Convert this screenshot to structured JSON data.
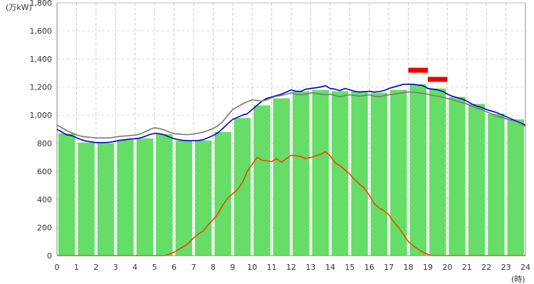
{
  "chart_data": {
    "type": "bar",
    "title": "",
    "xlabel": "(時)",
    "ylabel": "(万kW)",
    "xlim": [
      0,
      24
    ],
    "ylim": [
      0,
      1800
    ],
    "grid": true,
    "x_ticks": [
      "0",
      "1",
      "2",
      "3",
      "4",
      "5",
      "6",
      "7",
      "8",
      "9",
      "10",
      "11",
      "12",
      "13",
      "14",
      "15",
      "16",
      "17",
      "18",
      "19",
      "20",
      "21",
      "22",
      "23",
      "24"
    ],
    "y_ticks": [
      "0",
      "200",
      "400",
      "600",
      "800",
      "1,000",
      "1,200",
      "1,400",
      "1,600",
      "1,800"
    ],
    "categories": [
      "0",
      "1",
      "2",
      "3",
      "4",
      "5",
      "6",
      "7",
      "8",
      "9",
      "10",
      "11",
      "12",
      "13",
      "14",
      "15",
      "16",
      "17",
      "18",
      "19",
      "20",
      "21",
      "22",
      "23"
    ],
    "series": [
      {
        "type": "bar",
        "color": "#66dd66",
        "values": [
          870,
          805,
          800,
          825,
          835,
          865,
          820,
          820,
          880,
          980,
          1070,
          1120,
          1170,
          1180,
          1170,
          1170,
          1160,
          1180,
          1220,
          1190,
          1130,
          1080,
          1010,
          970
        ]
      },
      {
        "type": "line",
        "color": "#0000cc",
        "points": [
          [
            0,
            900
          ],
          [
            0.25,
            880
          ],
          [
            0.5,
            860
          ],
          [
            0.75,
            855
          ],
          [
            1,
            840
          ],
          [
            1.25,
            825
          ],
          [
            1.5,
            815
          ],
          [
            1.75,
            810
          ],
          [
            2,
            805
          ],
          [
            2.25,
            805
          ],
          [
            2.5,
            805
          ],
          [
            2.75,
            808
          ],
          [
            3,
            815
          ],
          [
            3.25,
            822
          ],
          [
            3.5,
            825
          ],
          [
            3.75,
            830
          ],
          [
            4,
            832
          ],
          [
            4.25,
            838
          ],
          [
            4.5,
            848
          ],
          [
            4.75,
            862
          ],
          [
            5,
            870
          ],
          [
            5.25,
            868
          ],
          [
            5.5,
            860
          ],
          [
            5.75,
            845
          ],
          [
            6,
            832
          ],
          [
            6.25,
            825
          ],
          [
            6.5,
            820
          ],
          [
            6.75,
            818
          ],
          [
            7,
            818
          ],
          [
            7.25,
            820
          ],
          [
            7.5,
            825
          ],
          [
            7.75,
            840
          ],
          [
            8,
            855
          ],
          [
            8.25,
            875
          ],
          [
            8.5,
            905
          ],
          [
            8.75,
            940
          ],
          [
            9,
            970
          ],
          [
            9.25,
            985
          ],
          [
            9.5,
            1000
          ],
          [
            9.75,
            1010
          ],
          [
            10,
            1040
          ],
          [
            10.25,
            1070
          ],
          [
            10.5,
            1100
          ],
          [
            10.75,
            1120
          ],
          [
            11,
            1130
          ],
          [
            11.25,
            1140
          ],
          [
            11.5,
            1150
          ],
          [
            11.75,
            1165
          ],
          [
            12,
            1180
          ],
          [
            12.25,
            1170
          ],
          [
            12.5,
            1170
          ],
          [
            12.75,
            1185
          ],
          [
            13,
            1190
          ],
          [
            13.25,
            1195
          ],
          [
            13.5,
            1200
          ],
          [
            13.75,
            1210
          ],
          [
            14,
            1190
          ],
          [
            14.25,
            1185
          ],
          [
            14.5,
            1175
          ],
          [
            14.75,
            1190
          ],
          [
            15,
            1180
          ],
          [
            15.25,
            1170
          ],
          [
            15.5,
            1165
          ],
          [
            15.75,
            1168
          ],
          [
            16,
            1170
          ],
          [
            16.25,
            1165
          ],
          [
            16.5,
            1168
          ],
          [
            16.75,
            1175
          ],
          [
            17,
            1190
          ],
          [
            17.25,
            1200
          ],
          [
            17.5,
            1210
          ],
          [
            17.75,
            1220
          ],
          [
            18,
            1220
          ],
          [
            18.25,
            1220
          ],
          [
            18.5,
            1215
          ],
          [
            18.75,
            1210
          ],
          [
            19,
            1190
          ],
          [
            19.25,
            1185
          ],
          [
            19.5,
            1180
          ],
          [
            19.75,
            1170
          ],
          [
            20,
            1150
          ],
          [
            20.25,
            1135
          ],
          [
            20.5,
            1125
          ],
          [
            20.75,
            1115
          ],
          [
            21,
            1100
          ],
          [
            21.25,
            1080
          ],
          [
            21.5,
            1065
          ],
          [
            21.75,
            1055
          ],
          [
            22,
            1040
          ],
          [
            22.25,
            1030
          ],
          [
            22.5,
            1020
          ],
          [
            22.75,
            1005
          ],
          [
            23,
            990
          ],
          [
            23.25,
            975
          ],
          [
            23.5,
            960
          ],
          [
            23.75,
            945
          ],
          [
            24,
            930
          ]
        ]
      },
      {
        "type": "line",
        "color": "#777777",
        "points": [
          [
            0,
            930
          ],
          [
            0.25,
            910
          ],
          [
            0.5,
            890
          ],
          [
            0.75,
            875
          ],
          [
            1,
            860
          ],
          [
            1.25,
            850
          ],
          [
            1.5,
            845
          ],
          [
            1.75,
            842
          ],
          [
            2,
            838
          ],
          [
            2.25,
            838
          ],
          [
            2.5,
            838
          ],
          [
            2.75,
            840
          ],
          [
            3,
            845
          ],
          [
            3.25,
            850
          ],
          [
            3.5,
            852
          ],
          [
            3.75,
            855
          ],
          [
            4,
            858
          ],
          [
            4.25,
            865
          ],
          [
            4.5,
            880
          ],
          [
            4.75,
            898
          ],
          [
            5,
            910
          ],
          [
            5.25,
            905
          ],
          [
            5.5,
            895
          ],
          [
            5.75,
            880
          ],
          [
            6,
            868
          ],
          [
            6.25,
            865
          ],
          [
            6.5,
            862
          ],
          [
            6.75,
            862
          ],
          [
            7,
            865
          ],
          [
            7.25,
            872
          ],
          [
            7.5,
            880
          ],
          [
            7.75,
            892
          ],
          [
            8,
            905
          ],
          [
            8.25,
            925
          ],
          [
            8.5,
            955
          ],
          [
            8.75,
            1000
          ],
          [
            9,
            1040
          ],
          [
            9.25,
            1060
          ],
          [
            9.5,
            1080
          ],
          [
            9.75,
            1095
          ],
          [
            10,
            1110
          ],
          [
            10.25,
            1105
          ],
          [
            10.5,
            1100
          ],
          [
            10.75,
            1110
          ],
          [
            11,
            1125
          ],
          [
            11.25,
            1135
          ],
          [
            11.5,
            1140
          ],
          [
            11.75,
            1150
          ],
          [
            12,
            1160
          ],
          [
            12.25,
            1150
          ],
          [
            12.5,
            1145
          ],
          [
            12.75,
            1150
          ],
          [
            13,
            1160
          ],
          [
            13.25,
            1155
          ],
          [
            13.5,
            1150
          ],
          [
            13.75,
            1145
          ],
          [
            14,
            1150
          ],
          [
            14.25,
            1140
          ],
          [
            14.5,
            1130
          ],
          [
            14.75,
            1140
          ],
          [
            15,
            1145
          ],
          [
            15.25,
            1140
          ],
          [
            15.5,
            1135
          ],
          [
            15.75,
            1140
          ],
          [
            16,
            1145
          ],
          [
            16.25,
            1135
          ],
          [
            16.5,
            1130
          ],
          [
            16.75,
            1138
          ],
          [
            17,
            1145
          ],
          [
            17.25,
            1150
          ],
          [
            17.5,
            1155
          ],
          [
            17.75,
            1160
          ],
          [
            18,
            1165
          ],
          [
            18.25,
            1165
          ],
          [
            18.5,
            1160
          ],
          [
            18.75,
            1155
          ],
          [
            19,
            1150
          ],
          [
            19.25,
            1140
          ],
          [
            19.5,
            1135
          ],
          [
            19.75,
            1128
          ],
          [
            20,
            1120
          ],
          [
            20.25,
            1110
          ],
          [
            20.5,
            1100
          ],
          [
            20.75,
            1090
          ],
          [
            21,
            1080
          ],
          [
            21.25,
            1065
          ],
          [
            21.5,
            1050
          ],
          [
            21.75,
            1040
          ],
          [
            22,
            1025
          ],
          [
            22.25,
            1010
          ],
          [
            22.5,
            995
          ],
          [
            22.75,
            985
          ],
          [
            23,
            975
          ],
          [
            23.25,
            965
          ],
          [
            23.5,
            955
          ],
          [
            23.75,
            940
          ],
          [
            24,
            920
          ]
        ]
      },
      {
        "type": "line",
        "color": "#ee4400",
        "points": [
          [
            0,
            0
          ],
          [
            5.5,
            0
          ],
          [
            5.75,
            10
          ],
          [
            6,
            25
          ],
          [
            6.25,
            45
          ],
          [
            6.5,
            65
          ],
          [
            6.75,
            90
          ],
          [
            7,
            125
          ],
          [
            7.25,
            155
          ],
          [
            7.5,
            175
          ],
          [
            7.75,
            220
          ],
          [
            8,
            255
          ],
          [
            8.25,
            300
          ],
          [
            8.5,
            360
          ],
          [
            8.75,
            410
          ],
          [
            9,
            440
          ],
          [
            9.25,
            470
          ],
          [
            9.5,
            520
          ],
          [
            9.75,
            600
          ],
          [
            10,
            650
          ],
          [
            10.25,
            700
          ],
          [
            10.5,
            680
          ],
          [
            10.75,
            675
          ],
          [
            11,
            670
          ],
          [
            11.25,
            690
          ],
          [
            11.5,
            665
          ],
          [
            11.75,
            690
          ],
          [
            12,
            715
          ],
          [
            12.25,
            710
          ],
          [
            12.5,
            705
          ],
          [
            12.75,
            690
          ],
          [
            13,
            700
          ],
          [
            13.25,
            710
          ],
          [
            13.5,
            720
          ],
          [
            13.75,
            740
          ],
          [
            14,
            710
          ],
          [
            14.25,
            660
          ],
          [
            14.5,
            640
          ],
          [
            14.75,
            610
          ],
          [
            15,
            580
          ],
          [
            15.25,
            540
          ],
          [
            15.5,
            510
          ],
          [
            15.75,
            480
          ],
          [
            16,
            430
          ],
          [
            16.25,
            370
          ],
          [
            16.5,
            340
          ],
          [
            16.75,
            320
          ],
          [
            17,
            290
          ],
          [
            17.25,
            240
          ],
          [
            17.5,
            200
          ],
          [
            17.75,
            150
          ],
          [
            18,
            100
          ],
          [
            18.25,
            70
          ],
          [
            18.5,
            45
          ],
          [
            18.75,
            25
          ],
          [
            19,
            8
          ],
          [
            19.25,
            0
          ],
          [
            24,
            0
          ]
        ]
      },
      {
        "type": "segment",
        "color": "#ee0000",
        "segments": [
          {
            "x0": 18.0,
            "x1": 19.0,
            "y": 1320
          },
          {
            "x0": 19.0,
            "x1": 20.0,
            "y": 1255
          }
        ]
      }
    ]
  }
}
